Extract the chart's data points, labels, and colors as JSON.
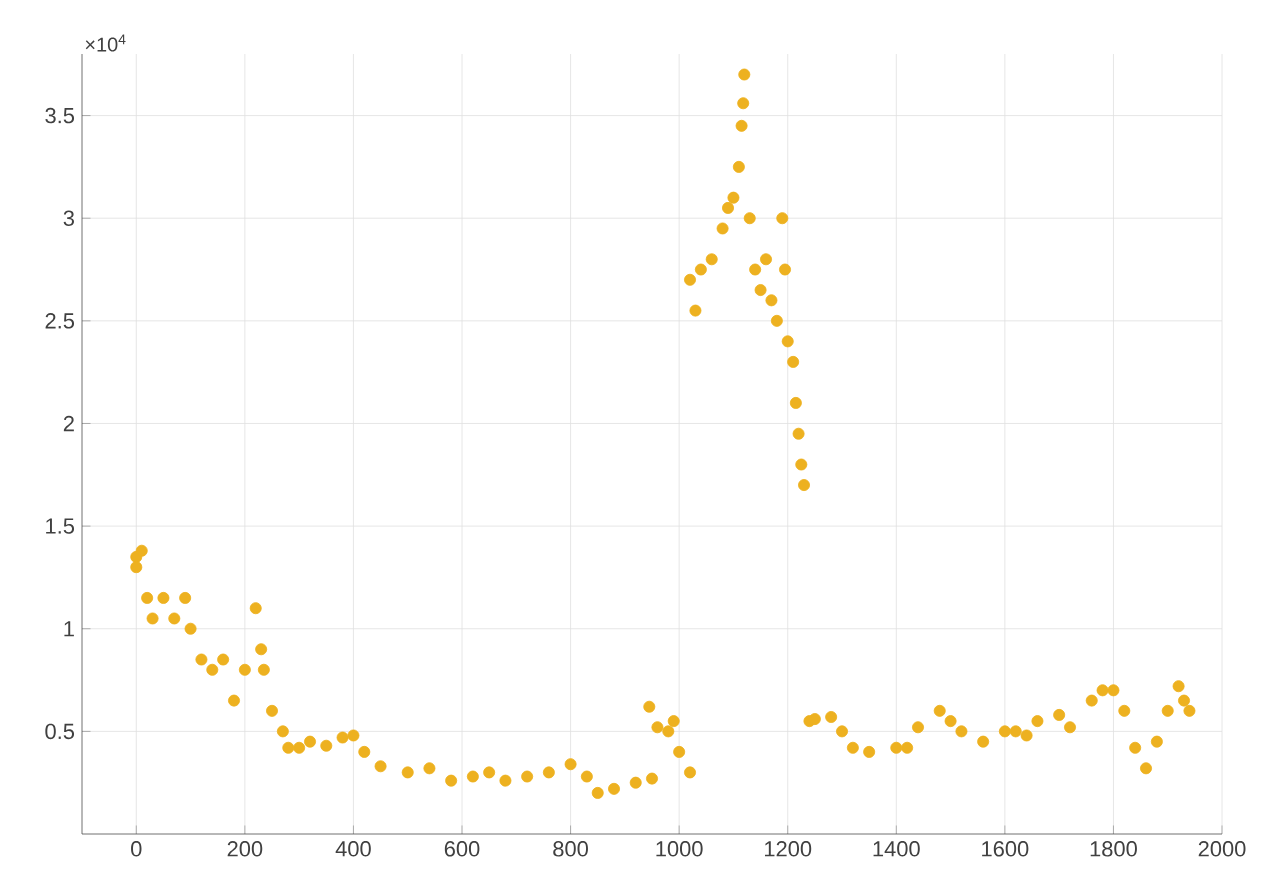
{
  "chart_data": {
    "type": "scatter",
    "marker": "circle",
    "grid": true,
    "xlim": [
      -100,
      2000
    ],
    "ylim": [
      0,
      3.8
    ],
    "xticks": [
      0,
      200,
      400,
      600,
      800,
      1000,
      1200,
      1400,
      1600,
      1800,
      2000
    ],
    "yticks": [
      0.5,
      1,
      1.5,
      2,
      2.5,
      3,
      3.5
    ],
    "annotations": [
      "×10$^{4}$"
    ],
    "series": [
      {
        "color": "#edb120",
        "x": [
          0,
          0,
          10,
          20,
          30,
          50,
          70,
          90,
          100,
          120,
          140,
          160,
          180,
          200,
          220,
          230,
          235,
          250,
          270,
          280,
          300,
          320,
          350,
          380,
          400,
          420,
          450,
          500,
          540,
          580,
          620,
          650,
          680,
          720,
          760,
          800,
          830,
          850,
          880,
          920,
          950,
          945,
          960,
          980,
          990,
          1000,
          1020,
          1020,
          1030,
          1040,
          1060,
          1080,
          1090,
          1100,
          1110,
          1115,
          1118,
          1120,
          1130,
          1140,
          1150,
          1160,
          1170,
          1180,
          1190,
          1195,
          1200,
          1210,
          1215,
          1220,
          1225,
          1230,
          1240,
          1250,
          1280,
          1300,
          1320,
          1350,
          1400,
          1420,
          1440,
          1480,
          1500,
          1520,
          1560,
          1600,
          1620,
          1640,
          1660,
          1700,
          1720,
          1760,
          1780,
          1800,
          1820,
          1840,
          1860,
          1880,
          1900,
          1920,
          1930,
          1940
        ],
        "values": [
          1.35,
          1.3,
          1.38,
          1.15,
          1.05,
          1.15,
          1.05,
          1.15,
          1.0,
          0.85,
          0.8,
          0.85,
          0.65,
          0.8,
          1.1,
          0.9,
          0.8,
          0.6,
          0.5,
          0.42,
          0.42,
          0.45,
          0.43,
          0.47,
          0.48,
          0.4,
          0.33,
          0.3,
          0.32,
          0.26,
          0.28,
          0.3,
          0.26,
          0.28,
          0.3,
          0.34,
          0.28,
          0.2,
          0.22,
          0.25,
          0.27,
          0.62,
          0.52,
          0.5,
          0.55,
          0.4,
          0.3,
          2.7,
          2.55,
          2.75,
          2.8,
          2.95,
          3.05,
          3.1,
          3.25,
          3.45,
          3.56,
          3.7,
          3.0,
          2.75,
          2.65,
          2.8,
          2.6,
          2.5,
          3.0,
          2.75,
          2.4,
          2.3,
          2.1,
          1.95,
          1.8,
          1.7,
          0.55,
          0.56,
          0.57,
          0.5,
          0.42,
          0.4,
          0.42,
          0.42,
          0.52,
          0.6,
          0.55,
          0.5,
          0.45,
          0.5,
          0.5,
          0.48,
          0.55,
          0.58,
          0.52,
          0.65,
          0.7,
          0.7,
          0.6,
          0.42,
          0.32,
          0.45,
          0.6,
          0.72,
          0.65,
          0.6
        ]
      }
    ]
  }
}
